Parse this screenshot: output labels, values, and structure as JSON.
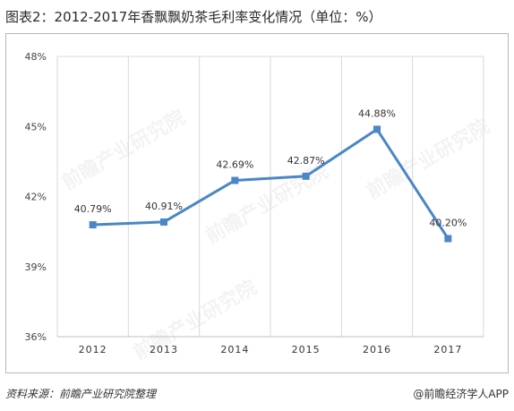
{
  "title": "图表2：2012-2017年香飘飘奶茶毛利率变化情况（单位：%）",
  "source": "资料来源：前瞻产业研究院整理",
  "credit": "@前瞻经济学人APP",
  "watermark": "前瞻产业研究院",
  "chart_data": {
    "type": "line",
    "title": "",
    "xlabel": "",
    "ylabel": "",
    "categories": [
      "2012",
      "2013",
      "2014",
      "2015",
      "2016",
      "2017"
    ],
    "series": [
      {
        "values": [
          40.79,
          40.91,
          42.69,
          42.87,
          44.88,
          40.2
        ],
        "labels": [
          "40.79%",
          "40.91%",
          "42.69%",
          "42.87%",
          "44.88%",
          "40.20%"
        ],
        "color": "#4a86c8"
      }
    ],
    "ylim": [
      36,
      48
    ],
    "yticks": [
      36,
      39,
      42,
      45,
      48
    ],
    "ytick_labels": [
      "36%",
      "39%",
      "42%",
      "45%",
      "48%"
    ],
    "grid": "vertical",
    "legend": "none"
  }
}
